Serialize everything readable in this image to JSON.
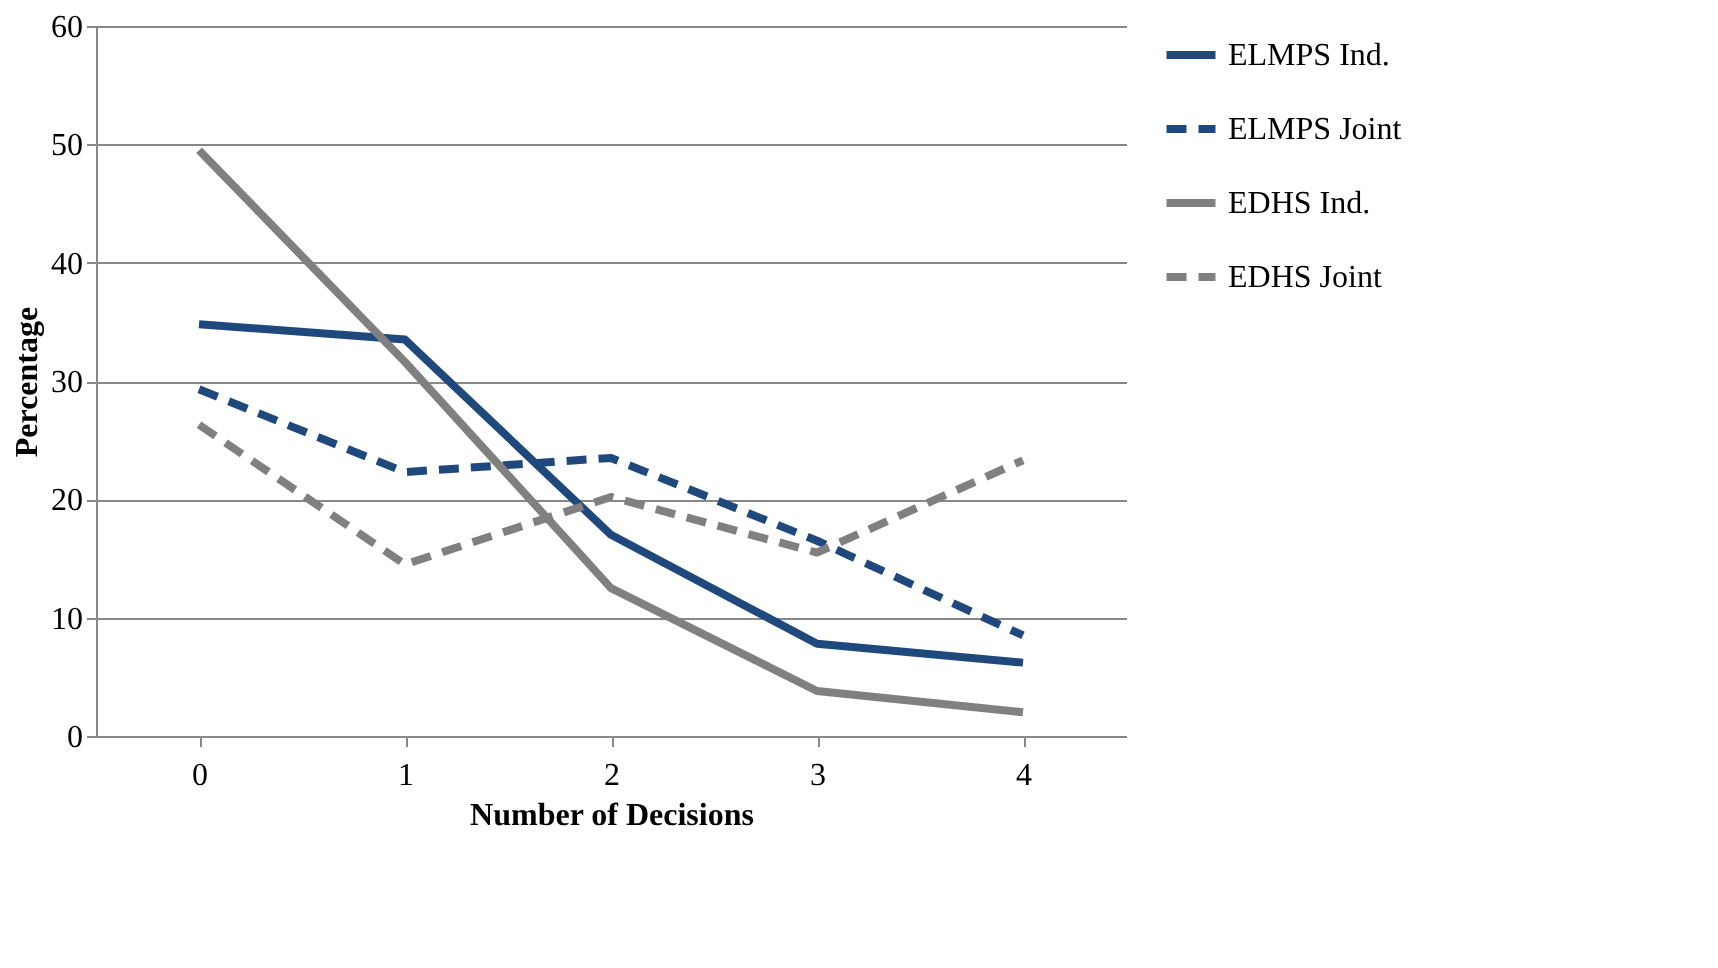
{
  "chart_data": {
    "type": "line",
    "xlabel": "Number of Decisions",
    "ylabel": "Percentage",
    "categories": [
      "0",
      "1",
      "2",
      "3",
      "4"
    ],
    "series": [
      {
        "name": "ELMPS Ind.",
        "color": "#1f497d",
        "line_style": "solid",
        "values": [
          34.8,
          33.5,
          17,
          7.8,
          6.2
        ]
      },
      {
        "name": "ELMPS Joint",
        "color": "#1f497d",
        "line_style": "dashed",
        "values": [
          29.3,
          22.3,
          23.5,
          16.5,
          8.5
        ]
      },
      {
        "name": "EDHS Ind.",
        "color": "#808080",
        "line_style": "solid",
        "values": [
          49.5,
          31.6,
          12.5,
          3.8,
          2
        ]
      },
      {
        "name": "EDHS Joint",
        "color": "#808080",
        "line_style": "dashed",
        "values": [
          26.3,
          14.5,
          20.2,
          15.5,
          23.3
        ]
      }
    ],
    "ylim": [
      0,
      60
    ],
    "yticks": [
      0,
      10,
      20,
      30,
      40,
      50,
      60
    ],
    "grid": "y",
    "legend": "right",
    "marker": "none"
  }
}
